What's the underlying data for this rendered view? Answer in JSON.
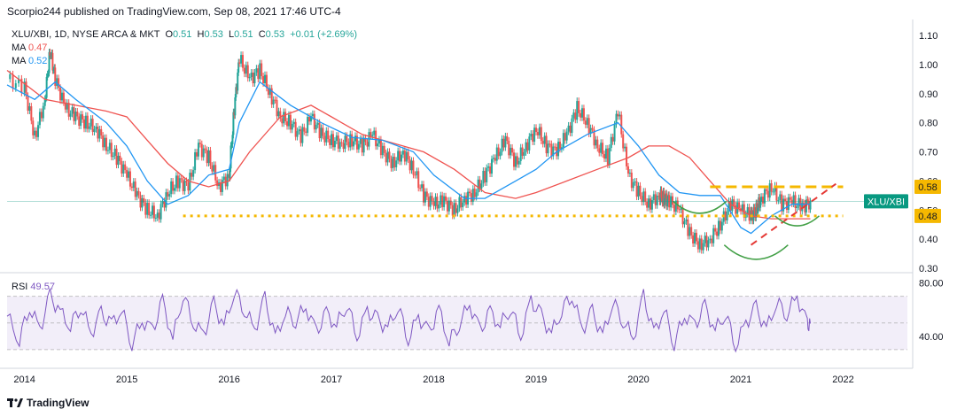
{
  "header": {
    "published": "Scorpio244 published on TradingView.com, Sep 08, 2021 17:46 UTC-4"
  },
  "legend": {
    "symbol": "XLU/XBI, 1D, NYSE ARCA & MKT",
    "open_label": "O",
    "open": "0.51",
    "high_label": "H",
    "high": "0.53",
    "low_label": "L",
    "low": "0.51",
    "close_label": "C",
    "close": "0.53",
    "change": "+0.01 (+2.69%)",
    "ma1_label": "MA",
    "ma1_value": "0.47",
    "ma2_label": "MA",
    "ma2_value": "0.52"
  },
  "rsi": {
    "label": "RSI",
    "value": "49.57"
  },
  "footer": {
    "brand": "TradingView"
  },
  "colors": {
    "up": "#26a69a",
    "down": "#ef5350",
    "ma_fast": "#2196f3",
    "ma_slow": "#ef5350",
    "rsi": "#7e57c2",
    "level": "#f5b800",
    "pattern": "#43a047"
  },
  "chart_data": [
    {
      "type": "line",
      "title": "XLU/XBI, 1D, NYSE ARCA & MKT",
      "x_ticks": [
        "2014",
        "2015",
        "2016",
        "2017",
        "2018",
        "2019",
        "2020",
        "2021",
        "2022"
      ],
      "y_ticks": [
        "1.10",
        "1.00",
        "0.90",
        "0.80",
        "0.70",
        "0.60",
        "0.50",
        "0.40",
        "0.30"
      ],
      "ylim": [
        0.3,
        1.1
      ],
      "price_labels": [
        {
          "text": "0.58",
          "value": 0.58
        },
        {
          "text": "XLU/XBI",
          "value": 0.53
        },
        {
          "text": "0.48",
          "value": 0.48
        }
      ],
      "series": [
        {
          "name": "XLU/XBI",
          "x": [
            2013.83,
            2014.0,
            2014.1,
            2014.2,
            2014.25,
            2014.3,
            2014.4,
            2014.5,
            2014.6,
            2014.7,
            2014.8,
            2014.9,
            2015.0,
            2015.1,
            2015.2,
            2015.3,
            2015.4,
            2015.5,
            2015.6,
            2015.7,
            2015.8,
            2015.9,
            2016.0,
            2016.05,
            2016.1,
            2016.2,
            2016.3,
            2016.4,
            2016.5,
            2016.6,
            2016.7,
            2016.8,
            2016.9,
            2017.0,
            2017.1,
            2017.2,
            2017.3,
            2017.4,
            2017.5,
            2017.6,
            2017.7,
            2017.8,
            2017.9,
            2018.0,
            2018.1,
            2018.2,
            2018.3,
            2018.4,
            2018.5,
            2018.6,
            2018.7,
            2018.8,
            2018.9,
            2019.0,
            2019.1,
            2019.2,
            2019.3,
            2019.4,
            2019.5,
            2019.6,
            2019.7,
            2019.8,
            2019.9,
            2020.0,
            2020.1,
            2020.2,
            2020.25,
            2020.3,
            2020.4,
            2020.5,
            2020.6,
            2020.7,
            2020.8,
            2020.9,
            2021.0,
            2021.1,
            2021.15,
            2021.2,
            2021.3,
            2021.4,
            2021.5,
            2021.6,
            2021.68
          ],
          "values": [
            0.95,
            0.92,
            0.75,
            0.88,
            1.05,
            0.95,
            0.85,
            0.82,
            0.8,
            0.78,
            0.72,
            0.68,
            0.62,
            0.55,
            0.5,
            0.48,
            0.56,
            0.6,
            0.58,
            0.72,
            0.68,
            0.58,
            0.62,
            0.85,
            1.02,
            0.95,
            0.98,
            0.9,
            0.82,
            0.8,
            0.75,
            0.82,
            0.76,
            0.74,
            0.73,
            0.74,
            0.72,
            0.76,
            0.7,
            0.66,
            0.7,
            0.64,
            0.55,
            0.52,
            0.53,
            0.5,
            0.54,
            0.56,
            0.62,
            0.68,
            0.74,
            0.66,
            0.72,
            0.78,
            0.72,
            0.7,
            0.76,
            0.85,
            0.8,
            0.72,
            0.68,
            0.84,
            0.62,
            0.56,
            0.52,
            0.55,
            0.54,
            0.53,
            0.5,
            0.42,
            0.38,
            0.4,
            0.45,
            0.52,
            0.5,
            0.48,
            0.5,
            0.54,
            0.58,
            0.52,
            0.53,
            0.51,
            0.53
          ]
        },
        {
          "name": "MA",
          "x": [
            2013.83,
            2014.2,
            2014.5,
            2014.8,
            2015.0,
            2015.2,
            2015.4,
            2015.6,
            2015.8,
            2016.0,
            2016.2,
            2016.5,
            2016.8,
            2017.0,
            2017.3,
            2017.6,
            2017.9,
            2018.2,
            2018.5,
            2018.8,
            2019.0,
            2019.3,
            2019.6,
            2019.9,
            2020.1,
            2020.3,
            2020.5,
            2020.7,
            2020.9,
            2021.1,
            2021.3,
            2021.5,
            2021.68
          ],
          "values": [
            0.98,
            0.88,
            0.86,
            0.84,
            0.82,
            0.74,
            0.66,
            0.6,
            0.58,
            0.6,
            0.7,
            0.82,
            0.86,
            0.82,
            0.76,
            0.73,
            0.7,
            0.64,
            0.56,
            0.54,
            0.56,
            0.6,
            0.64,
            0.68,
            0.72,
            0.72,
            0.68,
            0.6,
            0.52,
            0.48,
            0.47,
            0.47,
            0.47
          ]
        },
        {
          "name": "MA",
          "x": [
            2013.83,
            2014.1,
            2014.3,
            2014.5,
            2014.8,
            2015.0,
            2015.2,
            2015.4,
            2015.6,
            2015.8,
            2016.0,
            2016.1,
            2016.3,
            2016.6,
            2016.9,
            2017.2,
            2017.5,
            2017.8,
            2018.0,
            2018.3,
            2018.5,
            2018.8,
            2019.0,
            2019.2,
            2019.5,
            2019.8,
            2020.0,
            2020.2,
            2020.4,
            2020.6,
            2020.8,
            2021.0,
            2021.1,
            2021.3,
            2021.5,
            2021.68
          ],
          "values": [
            0.93,
            0.88,
            0.94,
            0.88,
            0.8,
            0.72,
            0.6,
            0.52,
            0.55,
            0.62,
            0.64,
            0.8,
            0.94,
            0.86,
            0.8,
            0.75,
            0.74,
            0.7,
            0.62,
            0.54,
            0.54,
            0.6,
            0.64,
            0.7,
            0.76,
            0.8,
            0.72,
            0.62,
            0.56,
            0.55,
            0.55,
            0.44,
            0.42,
            0.48,
            0.52,
            0.52
          ]
        }
      ],
      "levels": [
        {
          "value": 0.58,
          "from": 2020.7,
          "to": 2022.0,
          "style": "dashed"
        },
        {
          "value": 0.48,
          "from": 2015.55,
          "to": 2022.0,
          "style": "dotted"
        }
      ]
    },
    {
      "type": "line",
      "title": "RSI",
      "y_ticks": [
        "80.00",
        "40.00"
      ],
      "ylim": [
        20,
        85
      ],
      "bands": [
        30,
        70
      ],
      "series": [
        {
          "name": "RSI",
          "x": [
            2013.83,
            2013.95,
            2014.05,
            2014.15,
            2014.25,
            2014.35,
            2014.45,
            2014.55,
            2014.65,
            2014.75,
            2014.85,
            2014.95,
            2015.05,
            2015.15,
            2015.25,
            2015.35,
            2015.45,
            2015.55,
            2015.65,
            2015.75,
            2015.85,
            2015.95,
            2016.05,
            2016.15,
            2016.25,
            2016.35,
            2016.45,
            2016.55,
            2016.65,
            2016.75,
            2016.85,
            2016.95,
            2017.05,
            2017.15,
            2017.25,
            2017.35,
            2017.45,
            2017.55,
            2017.65,
            2017.75,
            2017.85,
            2017.95,
            2018.05,
            2018.15,
            2018.25,
            2018.35,
            2018.45,
            2018.55,
            2018.65,
            2018.75,
            2018.85,
            2018.95,
            2019.05,
            2019.15,
            2019.25,
            2019.35,
            2019.45,
            2019.55,
            2019.65,
            2019.75,
            2019.85,
            2019.95,
            2020.05,
            2020.15,
            2020.25,
            2020.35,
            2020.45,
            2020.55,
            2020.65,
            2020.75,
            2020.85,
            2020.95,
            2021.05,
            2021.15,
            2021.25,
            2021.35,
            2021.45,
            2021.55,
            2021.65,
            2021.68
          ],
          "values": [
            55,
            38,
            62,
            45,
            70,
            58,
            48,
            63,
            42,
            57,
            49,
            60,
            35,
            52,
            44,
            66,
            38,
            72,
            50,
            41,
            64,
            47,
            74,
            60,
            45,
            68,
            39,
            58,
            52,
            62,
            43,
            57,
            48,
            65,
            40,
            59,
            52,
            46,
            63,
            38,
            55,
            42,
            60,
            36,
            50,
            64,
            44,
            58,
            48,
            62,
            40,
            67,
            55,
            42,
            60,
            71,
            45,
            58,
            40,
            66,
            52,
            38,
            70,
            42,
            60,
            35,
            56,
            48,
            62,
            44,
            58,
            33,
            50,
            61,
            45,
            66,
            57,
            70,
            48,
            49.57
          ]
        }
      ]
    }
  ]
}
